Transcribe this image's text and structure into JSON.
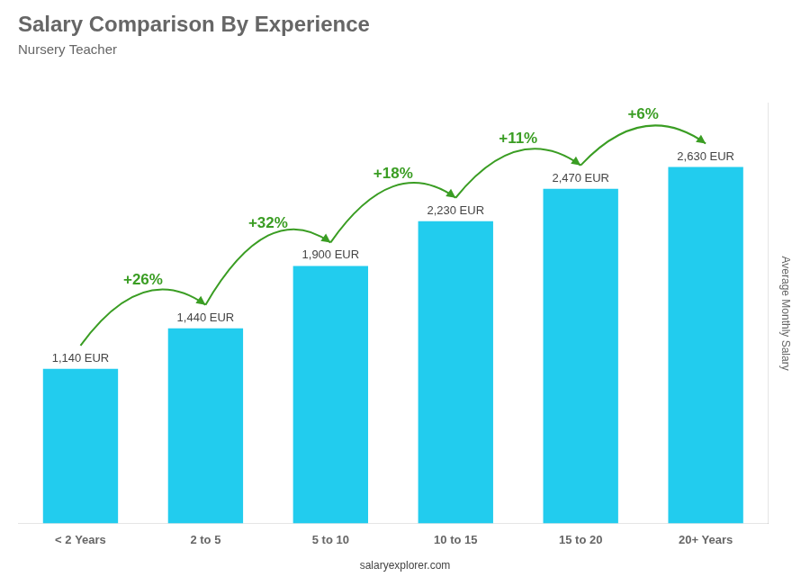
{
  "chart_data": {
    "type": "bar",
    "title": "Salary Comparison By Experience",
    "subtitle": "Nursery Teacher",
    "categories": [
      "< 2 Years",
      "2 to 5",
      "5 to 10",
      "10 to 15",
      "15 to 20",
      "20+ Years"
    ],
    "values": [
      1140,
      1440,
      1900,
      2230,
      2470,
      2630
    ],
    "value_labels": [
      "1,140 EUR",
      "1,440 EUR",
      "1,900 EUR",
      "2,230 EUR",
      "2,470 EUR",
      "2,630 EUR"
    ],
    "data_labels": true,
    "color": "#22ccee",
    "ylabel": "Average Monthly Salary",
    "ylim": [
      0,
      3100
    ],
    "tick_labels": "x",
    "grid": false,
    "annotations": [
      "+26%",
      "+32%",
      "+18%",
      "+11%",
      "+6%"
    ],
    "footer": "salaryexplorer.com"
  }
}
